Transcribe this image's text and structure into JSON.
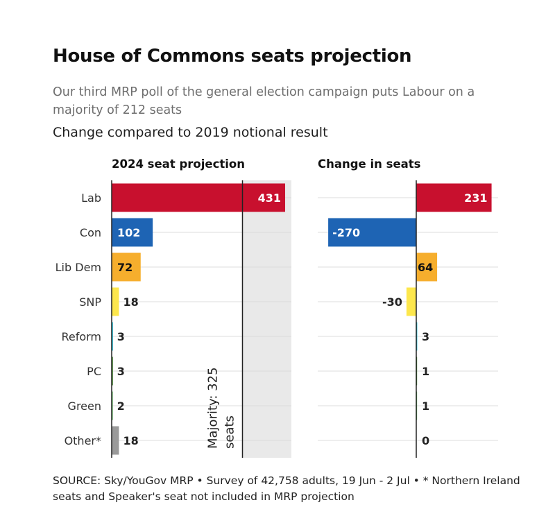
{
  "title": "House of Commons seats projection",
  "subtitle": "Our third MRP poll of the general election campaign puts Labour on a majority of 212 seats",
  "note": "Change compared to 2019 notional result",
  "source": "SOURCE: Sky/YouGov MRP • Survey of 42,758 adults, 19 Jun - 2 Jul • * Northern Ireland seats and Speaker's seat not included in MRP projection",
  "chart_data": [
    {
      "type": "bar",
      "orientation": "horizontal",
      "title": "2024 seat projection",
      "categories": [
        "Lab",
        "Con",
        "Lib Dem",
        "SNP",
        "Reform",
        "PC",
        "Green",
        "Other*"
      ],
      "values": [
        431,
        102,
        72,
        18,
        3,
        3,
        2,
        18
      ],
      "xlim": [
        0,
        650
      ],
      "reference": {
        "value": 325,
        "label_line1": "Majority: 325",
        "label_line2": "seats"
      }
    },
    {
      "type": "bar",
      "orientation": "horizontal",
      "title": "Change in seats",
      "categories": [
        "Lab",
        "Con",
        "Lib Dem",
        "SNP",
        "Reform",
        "PC",
        "Green",
        "Other*"
      ],
      "values": [
        231,
        -270,
        64,
        -30,
        3,
        1,
        1,
        0
      ],
      "xlim": [
        -300,
        250
      ]
    }
  ],
  "colors": {
    "Lab": "#c8102e",
    "Con": "#1e64b4",
    "Lib Dem": "#f6ae2d",
    "SNP": "#fde74c",
    "Reform": "#12b6cf",
    "PC": "#3f8428",
    "Green": "#5fb25f",
    "Other*": "#9a9a9a",
    "majority_shade": "#e9e9e9",
    "gridline": "#dcdcdc"
  }
}
